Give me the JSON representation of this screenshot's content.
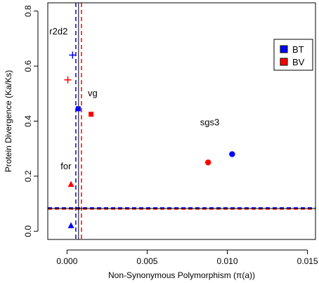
{
  "chart_data": {
    "type": "scatter",
    "title": "",
    "xlabel": "Non-Synonymous Polymorphism (π(a))",
    "ylabel": "Protein Divergence (Ka/Ks)",
    "xlim": [
      -0.0012,
      0.0155
    ],
    "ylim": [
      -0.03,
      0.83
    ],
    "xticks": [
      "0.000",
      "0.005",
      "0.010",
      "0.015"
    ],
    "xtick_values": [
      0,
      0.005,
      0.01,
      0.015
    ],
    "yticks": [
      "0.0",
      "0.2",
      "0.4",
      "0.6",
      "0.8"
    ],
    "ytick_values": [
      0,
      0.2,
      0.4,
      0.6,
      0.8
    ],
    "grid": false,
    "legend_position": "top-right",
    "series": [
      {
        "name": "BT",
        "color": "#0000ff",
        "points": [
          {
            "gene": "r2d2",
            "x": 0.00035,
            "y": 0.64,
            "marker": "plus"
          },
          {
            "gene": "vg",
            "x": 0.0007,
            "y": 0.445,
            "marker": "square"
          },
          {
            "gene": "sgs3",
            "x": 0.0103,
            "y": 0.28,
            "marker": "circle"
          },
          {
            "gene": "for",
            "x": 0.00025,
            "y": 0.02,
            "marker": "triangle"
          }
        ],
        "vline_x": 0.00055,
        "hline_y": 0.085
      },
      {
        "name": "BV",
        "color": "#ff0000",
        "points": [
          {
            "gene": "r2d2",
            "x": 5e-05,
            "y": 0.55,
            "marker": "plus"
          },
          {
            "gene": "vg",
            "x": 0.0015,
            "y": 0.425,
            "marker": "square"
          },
          {
            "gene": "sgs3",
            "x": 0.0088,
            "y": 0.25,
            "marker": "circle"
          },
          {
            "gene": "for",
            "x": 0.00025,
            "y": 0.17,
            "marker": "triangle"
          }
        ],
        "vline_x": 0.0009,
        "hline_y": 0.08
      }
    ],
    "center_line_x": 0.00072,
    "center_line_y": 0.0825,
    "annotations": [
      {
        "text": "r2d2",
        "x": -0.0011,
        "y": 0.715
      },
      {
        "text": "vg",
        "x": 0.0013,
        "y": 0.49
      },
      {
        "text": "sgs3",
        "x": 0.0083,
        "y": 0.385
      },
      {
        "text": "for",
        "x": -0.0004,
        "y": 0.225
      }
    ]
  }
}
